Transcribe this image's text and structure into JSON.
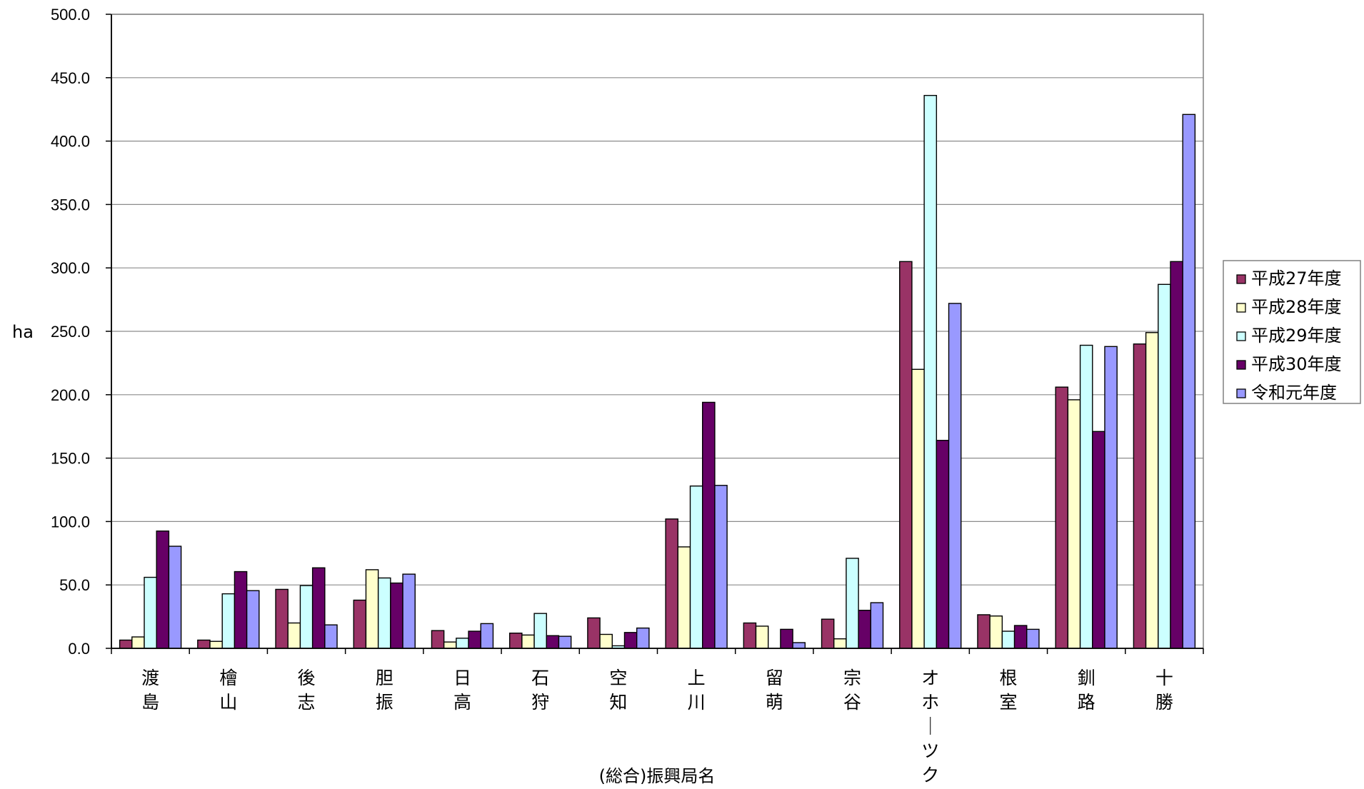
{
  "chart_data": {
    "type": "bar",
    "title": "",
    "xlabel": "(総合)振興局名",
    "ylabel": "ha",
    "ylim": [
      0,
      500
    ],
    "yticks": [
      "0.0",
      "50.0",
      "100.0",
      "150.0",
      "200.0",
      "250.0",
      "300.0",
      "350.0",
      "400.0",
      "450.0",
      "500.0"
    ],
    "grid": true,
    "legend_position": "right",
    "categories": [
      "渡島",
      "檜山",
      "後志",
      "胆振",
      "日高",
      "石狩",
      "空知",
      "上川",
      "留萌",
      "宗谷",
      "オホーツク",
      "根室",
      "釧路",
      "十勝"
    ],
    "series": [
      {
        "name": "平成27年度",
        "color": "#993366",
        "values": [
          6.5,
          6.5,
          46.5,
          38,
          14,
          12,
          24,
          102,
          20,
          23,
          305,
          26.5,
          206,
          240
        ]
      },
      {
        "name": "平成28年度",
        "color": "#FFFFCC",
        "values": [
          9,
          5.5,
          20,
          62,
          5,
          10.5,
          11,
          80,
          17.5,
          7.5,
          220,
          25.5,
          196,
          249
        ]
      },
      {
        "name": "平成29年度",
        "color": "#CCFFFF",
        "values": [
          56,
          43,
          49.5,
          55.5,
          8,
          27.5,
          2,
          128,
          0,
          71,
          436,
          13.5,
          239,
          287
        ]
      },
      {
        "name": "平成30年度",
        "color": "#660066",
        "values": [
          92.5,
          60.5,
          63.5,
          51.5,
          13.5,
          10,
          12.5,
          194,
          15,
          30,
          164,
          18,
          171,
          305
        ]
      },
      {
        "name": "令和元年度",
        "color": "#9999FF",
        "values": [
          80.5,
          45.5,
          18.5,
          58.5,
          19.5,
          9.5,
          16,
          128.5,
          4.5,
          36,
          272,
          15,
          238,
          421
        ]
      }
    ]
  }
}
